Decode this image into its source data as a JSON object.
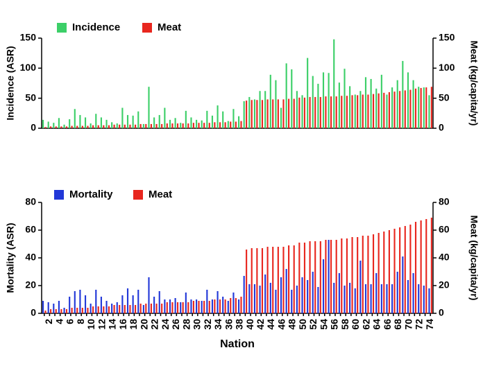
{
  "chart_data": [
    {
      "type": "bar",
      "ylabel": "Incidence (ASR)",
      "y2label": "Meat (kg/capita/yr)",
      "ylim": [
        0,
        150
      ],
      "yticks": [
        0,
        50,
        100,
        150
      ],
      "y2lim": [
        0,
        150
      ],
      "y2ticks": [
        0,
        50,
        100,
        150
      ],
      "series": [
        {
          "name": "Incidence",
          "color": "#3ccf68",
          "axis": "y",
          "values": [
            14,
            11,
            9,
            17,
            6,
            15,
            32,
            22,
            18,
            8,
            24,
            18,
            14,
            10,
            8,
            34,
            22,
            21,
            28,
            7,
            69,
            18,
            22,
            34,
            14,
            17,
            9,
            29,
            18,
            14,
            13,
            29,
            21,
            38,
            28,
            12,
            32,
            20,
            45,
            52,
            48,
            62,
            62,
            89,
            80,
            34,
            108,
            98,
            62,
            55,
            117,
            87,
            74,
            93,
            92,
            148,
            76,
            99,
            70,
            56,
            62,
            85,
            82,
            66,
            89,
            56,
            68,
            80,
            112,
            93,
            80,
            69,
            68,
            55
          ]
        },
        {
          "name": "Meat",
          "color": "#e8261e",
          "axis": "y2",
          "values": [
            2,
            3,
            3,
            3,
            3,
            4,
            4,
            4,
            4,
            5,
            5,
            5,
            5,
            6,
            6,
            6,
            6,
            6,
            7,
            7,
            7,
            7,
            7,
            8,
            8,
            8,
            8,
            8,
            9,
            9,
            9,
            9,
            10,
            10,
            10,
            11,
            11,
            12,
            46,
            47,
            47,
            47,
            48,
            48,
            48,
            48,
            49,
            49,
            51,
            51,
            52,
            52,
            52,
            53,
            53,
            53,
            54,
            54,
            55,
            55,
            56,
            56,
            57,
            58,
            59,
            60,
            61,
            62,
            63,
            64,
            66,
            67,
            68,
            69
          ]
        }
      ]
    },
    {
      "type": "bar",
      "ylabel": "Mortality (ASR)",
      "y2label": "Meat (kg/capita/yr)",
      "xlabel": "Nation",
      "categories": [
        null,
        "2",
        null,
        "4",
        null,
        "6",
        null,
        "8",
        null,
        "10",
        null,
        "12",
        null,
        "14",
        null,
        "16",
        null,
        "18",
        null,
        "20",
        null,
        "22",
        null,
        "24",
        null,
        "26",
        null,
        "28",
        null,
        "30",
        null,
        "32",
        null,
        "34",
        null,
        "36",
        null,
        "38",
        null,
        "40",
        null,
        "42",
        null,
        "44",
        null,
        "46",
        null,
        "48",
        null,
        "50",
        null,
        "52",
        null,
        "54",
        null,
        "56",
        null,
        "58",
        null,
        "60",
        null,
        "62",
        null,
        "64",
        null,
        "66",
        null,
        "68",
        null,
        "70",
        null,
        "72",
        null,
        "74"
      ],
      "ylim": [
        0,
        80
      ],
      "yticks": [
        0,
        20,
        40,
        60,
        80
      ],
      "y2lim": [
        0,
        80
      ],
      "y2ticks": [
        0,
        20,
        40,
        60,
        80
      ],
      "series": [
        {
          "name": "Mortality",
          "color": "#2238d8",
          "axis": "y",
          "values": [
            9,
            8,
            7,
            9,
            4,
            12,
            16,
            17,
            13,
            7,
            17,
            12,
            9,
            7,
            8,
            13,
            18,
            13,
            17,
            6,
            26,
            12,
            16,
            10,
            10,
            11,
            8,
            15,
            10,
            10,
            9,
            17,
            10,
            16,
            12,
            9,
            15,
            10,
            27,
            21,
            21,
            20,
            28,
            22,
            17,
            26,
            32,
            17,
            20,
            26,
            24,
            30,
            19,
            39,
            53,
            22,
            29,
            20,
            22,
            18,
            38,
            21,
            21,
            29,
            21,
            21,
            21,
            30,
            41,
            24,
            29,
            21,
            20,
            18
          ]
        },
        {
          "name": "Meat",
          "color": "#e8261e",
          "axis": "y2",
          "values": [
            2,
            3,
            3,
            3,
            3,
            4,
            4,
            4,
            4,
            5,
            5,
            5,
            5,
            6,
            6,
            6,
            6,
            6,
            7,
            7,
            7,
            7,
            7,
            8,
            8,
            8,
            8,
            8,
            9,
            9,
            9,
            9,
            10,
            10,
            10,
            11,
            11,
            12,
            46,
            47,
            47,
            47,
            48,
            48,
            48,
            48,
            49,
            49,
            51,
            51,
            52,
            52,
            52,
            53,
            53,
            53,
            54,
            54,
            55,
            55,
            56,
            56,
            57,
            58,
            59,
            60,
            61,
            62,
            63,
            64,
            66,
            67,
            68,
            69
          ]
        }
      ]
    }
  ]
}
